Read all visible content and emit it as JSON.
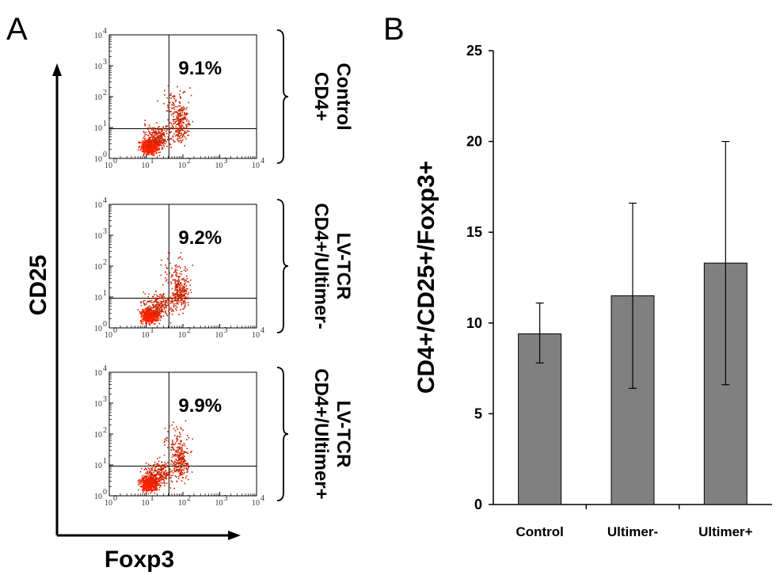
{
  "panel_a": {
    "letter": "A",
    "y_axis_label": "CD25",
    "x_axis_label": "Foxp3",
    "plots": [
      {
        "percent": "9.1%",
        "label_lines": [
          "Control",
          "CD4+"
        ]
      },
      {
        "percent": "9.2%",
        "label_lines": [
          "LV-TCR",
          "CD4+/Ultimer-"
        ]
      },
      {
        "percent": "9.9%",
        "label_lines": [
          "LV-TCR",
          "CD4+/Ultimer+"
        ]
      }
    ],
    "decade_ticks": [
      "10",
      "10",
      "10",
      "10",
      "10"
    ],
    "decade_exponents": [
      "0",
      "1",
      "2",
      "3",
      "4"
    ],
    "dot_color": "#cc2200",
    "dense_color": "#ff2200"
  },
  "panel_b": {
    "letter": "B"
  },
  "chart_data": {
    "type": "bar",
    "title": "",
    "xlabel": "",
    "ylabel": "CD4+/CD25+/Foxp3+",
    "categories": [
      "Control",
      "Ultimer-",
      "Ultimer+"
    ],
    "values": [
      9.4,
      11.5,
      13.3
    ],
    "error_low": [
      7.8,
      6.4,
      6.6
    ],
    "error_high": [
      11.1,
      16.6,
      20.0
    ],
    "ylim": [
      0,
      25
    ],
    "yticks": [
      "0",
      "5",
      "10",
      "15",
      "20",
      "25"
    ],
    "bar_color": "#808080",
    "grid": false
  }
}
